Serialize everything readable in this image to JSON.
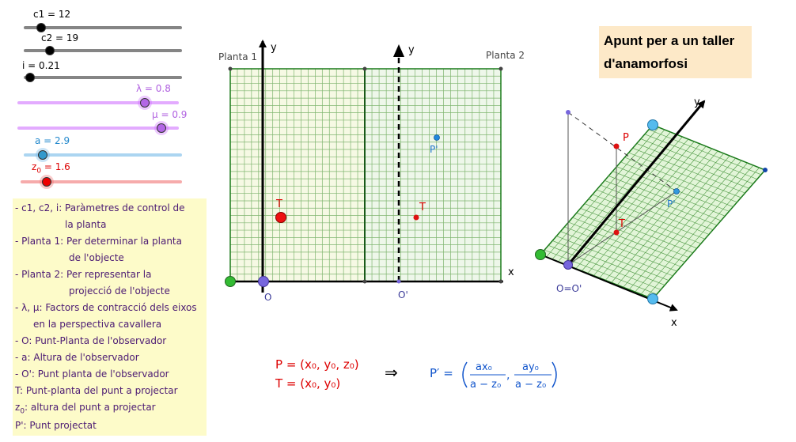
{
  "sliders": [
    {
      "id": "c1",
      "label": "c1 = 12",
      "color": "#666666",
      "knob_color": "#000000"
    },
    {
      "id": "c2",
      "label": "c2 = 19",
      "color": "#666666",
      "knob_color": "#000000"
    },
    {
      "id": "i",
      "label": "i = 0.21",
      "color": "#666666",
      "knob_color": "#000000"
    },
    {
      "id": "lambda",
      "label": "λ = 0.8",
      "color": "#cc66ff",
      "knob_color": "#b366e6"
    },
    {
      "id": "mu",
      "label": "μ = 0.9",
      "color": "#cc66ff",
      "knob_color": "#b366e6"
    },
    {
      "id": "a",
      "label": "a = 2.9",
      "color": "#66b3e6",
      "knob_color": "#3399cc"
    },
    {
      "id": "z0",
      "label_main": "z",
      "label_sub": "0",
      "label_rest": " = 1.6",
      "color": "#ee6666",
      "knob_color": "#ee0000"
    }
  ],
  "title": {
    "line1": "Apunt per a un taller",
    "line2": "d'anamorfosi"
  },
  "legend": {
    "l1": "- c1, c2, i: Paràmetres de control de",
    "l2": "la planta",
    "l3": "- Planta 1: Per determinar la planta",
    "l4": "de l'objecte",
    "l5": "- Planta 2: Per representar la",
    "l6": "projecció de l'objecte",
    "l7": "- λ, μ: Factors de contracció dels eixos",
    "l8": "en la perspectiva cavallera",
    "l9": "- O: Punt-Planta de l'observador",
    "l10": "- a: Altura de l'observador",
    "l11": "- O': Punt planta de l'observador",
    "l12": "T: Punt-planta del punt a projectar",
    "l13_main": "z",
    "l13_sub": "0",
    "l13_rest": ": altura del punt a projectar",
    "l14": "P': Punt projectat"
  },
  "plan": {
    "planta1": "Planta 1",
    "planta2": "Planta 2",
    "y1": "y",
    "y2": "y",
    "x": "x",
    "O": "O",
    "Oprime": "O'",
    "T1": "T",
    "T2": "T",
    "Pprime": "P'"
  },
  "persp": {
    "P": "P",
    "T": "T",
    "Pprime": "P'",
    "y": "y",
    "x": "x",
    "origin": "O=O'"
  },
  "formula": {
    "p_def": "P = (x₀, y₀, z₀)",
    "t_def": "T = (x₀, y₀)",
    "implies": "⇒",
    "pprime_lhs": "P′ =",
    "num1": "ax₀",
    "den1": "a − z₀",
    "num2": "ay₀",
    "den2": "a − z₀"
  }
}
